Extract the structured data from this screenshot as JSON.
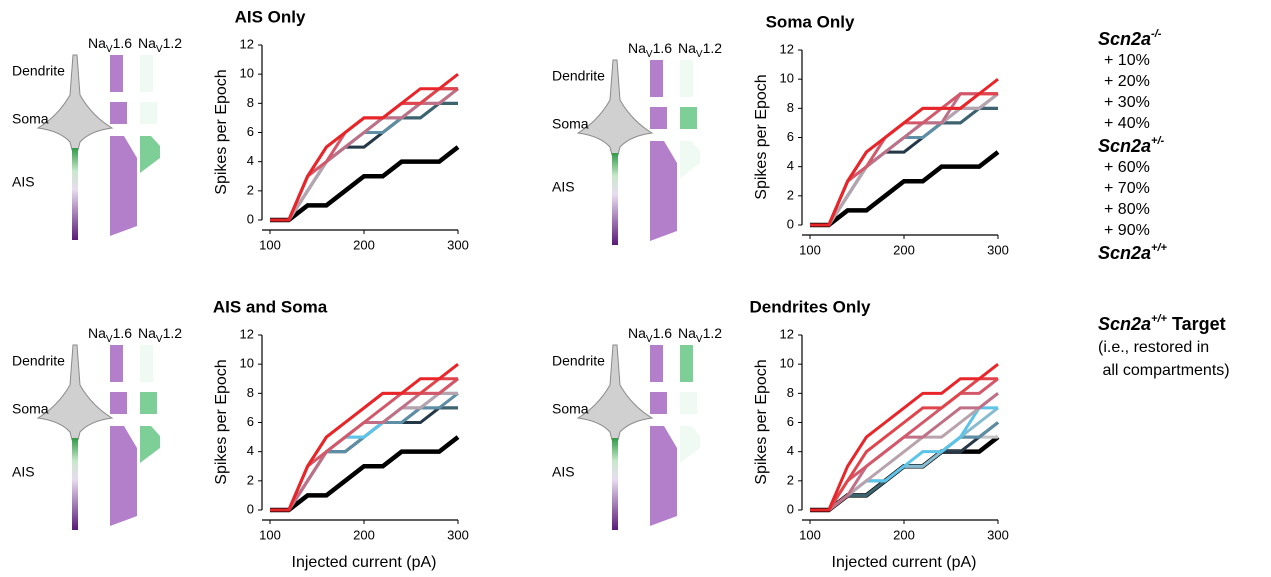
{
  "chart_data": [
    {
      "type": "line",
      "title": "AIS Only",
      "ylabel": "Spikes per Epoch",
      "x": [
        100,
        120,
        140,
        160,
        180,
        200,
        220,
        240,
        260,
        280,
        300
      ],
      "xlim": [
        100,
        300
      ],
      "xticks": [
        100,
        200,
        300
      ],
      "ylim": [
        0,
        12
      ],
      "yticks": [
        0,
        2,
        4,
        6,
        8,
        10,
        12
      ],
      "compartments": [
        {
          "label": "Dendrite",
          "muted": true
        },
        {
          "label": "Soma",
          "muted": true
        },
        {
          "label": "AIS",
          "muted": false
        }
      ],
      "channels": [
        {
          "name": "Na",
          "sub": "V",
          "num": "1.6",
          "color": "#a050b8"
        },
        {
          "name": "Na",
          "sub": "V",
          "num": "1.2",
          "color": "#3fae5f"
        }
      ],
      "nav12": [
        false,
        false,
        true
      ],
      "series": [
        {
          "values": [
            0,
            0,
            3,
            5,
            6,
            7,
            7,
            8,
            9,
            9,
            10
          ]
        },
        {
          "values": [
            0,
            0,
            3,
            5,
            6,
            7,
            7,
            8,
            8,
            9,
            9
          ]
        },
        {
          "values": [
            0,
            0,
            3,
            4,
            6,
            7,
            7,
            8,
            8,
            9,
            9
          ]
        },
        {
          "values": [
            0,
            0,
            3,
            4,
            5,
            6,
            7,
            7,
            8,
            8,
            9
          ]
        },
        {
          "values": [
            0,
            0,
            2,
            4,
            5,
            6,
            7,
            7,
            8,
            8,
            9
          ]
        },
        {
          "values": [
            0,
            0,
            2,
            4,
            5,
            6,
            7,
            7,
            8,
            9,
            9
          ]
        },
        {
          "values": [
            0,
            0,
            2,
            4,
            5,
            6,
            7,
            7,
            8,
            8,
            9
          ]
        },
        {
          "values": [
            0,
            0,
            2,
            4,
            5,
            6,
            6,
            7,
            8,
            8,
            9
          ]
        },
        {
          "values": [
            0,
            0,
            2,
            4,
            5,
            6,
            6,
            7,
            7,
            8,
            8
          ]
        },
        {
          "values": [
            0,
            0,
            2,
            4,
            5,
            5,
            6,
            7,
            7,
            8,
            8
          ]
        },
        {
          "values": [
            0,
            0,
            2,
            4,
            5,
            5,
            6,
            7,
            7,
            8,
            8
          ]
        },
        {
          "values": [
            0,
            0,
            1,
            1,
            2,
            3,
            3,
            4,
            4,
            4,
            5
          ]
        }
      ]
    },
    {
      "type": "line",
      "title": "Soma Only",
      "ylabel": "Spikes per Epoch",
      "x": [
        100,
        120,
        140,
        160,
        180,
        200,
        220,
        240,
        260,
        280,
        300
      ],
      "xlim": [
        100,
        300
      ],
      "xticks": [
        100,
        200,
        300
      ],
      "ylim": [
        0,
        12
      ],
      "yticks": [
        0,
        2,
        4,
        6,
        8,
        10,
        12
      ],
      "compartments": [
        {
          "label": "Dendrite",
          "muted": false
        },
        {
          "label": "Soma",
          "muted": false
        },
        {
          "label": "AIS",
          "muted": false
        }
      ],
      "channels": [
        {
          "name": "Na",
          "sub": "V",
          "num": "1.6",
          "color": "#a050b8"
        },
        {
          "name": "Na",
          "sub": "V",
          "num": "1.2",
          "color": "#3fae5f"
        }
      ],
      "nav12": [
        false,
        true,
        false
      ],
      "series": [
        {
          "values": [
            0,
            0,
            3,
            5,
            6,
            7,
            8,
            8,
            8,
            9,
            10
          ]
        },
        {
          "values": [
            0,
            0,
            3,
            5,
            6,
            7,
            8,
            8,
            8,
            9,
            9
          ]
        },
        {
          "values": [
            0,
            0,
            3,
            4,
            6,
            7,
            7,
            8,
            9,
            9,
            9
          ]
        },
        {
          "values": [
            0,
            0,
            3,
            4,
            5,
            6,
            7,
            7,
            9,
            9,
            9
          ]
        },
        {
          "values": [
            0,
            0,
            2,
            4,
            5,
            6,
            7,
            7,
            8,
            8,
            9
          ]
        },
        {
          "values": [
            0,
            0,
            2,
            4,
            5,
            6,
            7,
            7,
            8,
            8,
            9
          ]
        },
        {
          "values": [
            0,
            0,
            2,
            4,
            5,
            6,
            7,
            7,
            8,
            8,
            9
          ]
        },
        {
          "values": [
            0,
            0,
            2,
            4,
            5,
            6,
            6,
            7,
            8,
            8,
            9
          ]
        },
        {
          "values": [
            0,
            0,
            2,
            4,
            5,
            6,
            6,
            7,
            7,
            8,
            8
          ]
        },
        {
          "values": [
            0,
            0,
            2,
            4,
            5,
            5,
            6,
            7,
            7,
            8,
            8
          ]
        },
        {
          "values": [
            0,
            0,
            2,
            4,
            5,
            5,
            6,
            7,
            7,
            8,
            8
          ]
        },
        {
          "values": [
            0,
            0,
            1,
            1,
            2,
            3,
            3,
            4,
            4,
            4,
            5
          ]
        }
      ]
    },
    {
      "type": "line",
      "title": "AIS and Soma",
      "ylabel": "Spikes per Epoch",
      "x": [
        100,
        120,
        140,
        160,
        180,
        200,
        220,
        240,
        260,
        280,
        300
      ],
      "xlim": [
        100,
        300
      ],
      "xticks": [
        100,
        200,
        300
      ],
      "ylim": [
        0,
        12
      ],
      "yticks": [
        0,
        2,
        4,
        6,
        8,
        10,
        12
      ],
      "compartments": [
        {
          "label": "Dendrite",
          "muted": true
        },
        {
          "label": "Soma",
          "muted": false
        },
        {
          "label": "AIS",
          "muted": false
        }
      ],
      "channels": [
        {
          "name": "Na",
          "sub": "V",
          "num": "1.6",
          "color": "#a050b8"
        },
        {
          "name": "Na",
          "sub": "V",
          "num": "1.2",
          "color": "#3fae5f"
        }
      ],
      "nav12": [
        false,
        true,
        true
      ],
      "series": [
        {
          "values": [
            0,
            0,
            3,
            5,
            6,
            7,
            8,
            8,
            9,
            9,
            10
          ]
        },
        {
          "values": [
            0,
            0,
            3,
            5,
            6,
            7,
            8,
            8,
            8,
            9,
            9
          ]
        },
        {
          "values": [
            0,
            0,
            3,
            4,
            5,
            6,
            7,
            8,
            8,
            8,
            9
          ]
        },
        {
          "values": [
            0,
            0,
            2,
            4,
            5,
            6,
            6,
            7,
            8,
            8,
            9
          ]
        },
        {
          "values": [
            0,
            0,
            2,
            4,
            5,
            6,
            6,
            7,
            7,
            8,
            8
          ]
        },
        {
          "values": [
            0,
            0,
            2,
            4,
            5,
            5,
            6,
            7,
            7,
            8,
            8
          ]
        },
        {
          "values": [
            0,
            0,
            2,
            4,
            5,
            5,
            6,
            7,
            7,
            8,
            8
          ]
        },
        {
          "values": [
            0,
            0,
            2,
            4,
            4,
            5,
            6,
            6,
            7,
            7,
            8
          ]
        },
        {
          "values": [
            0,
            0,
            2,
            4,
            4,
            5,
            6,
            6,
            7,
            7,
            7
          ]
        },
        {
          "values": [
            0,
            0,
            2,
            4,
            4,
            5,
            6,
            6,
            6,
            7,
            7
          ]
        },
        {
          "values": [
            0,
            0,
            2,
            4,
            4,
            5,
            6,
            6,
            6,
            7,
            7
          ]
        },
        {
          "values": [
            0,
            0,
            1,
            1,
            2,
            3,
            3,
            4,
            4,
            4,
            5
          ]
        }
      ]
    },
    {
      "type": "line",
      "title": "Dendrites Only",
      "ylabel": "Spikes per Epoch",
      "xlabel": "Injected current (pA)",
      "x": [
        100,
        120,
        140,
        160,
        180,
        200,
        220,
        240,
        260,
        280,
        300
      ],
      "xlim": [
        100,
        300
      ],
      "xticks": [
        100,
        200,
        300
      ],
      "ylim": [
        0,
        12
      ],
      "yticks": [
        0,
        2,
        4,
        6,
        8,
        10,
        12
      ],
      "compartments": [
        {
          "label": "Dendrite",
          "muted": false
        },
        {
          "label": "Soma",
          "muted": false
        },
        {
          "label": "AIS",
          "muted": false
        }
      ],
      "channels": [
        {
          "name": "Na",
          "sub": "V",
          "num": "1.6",
          "color": "#a050b8"
        },
        {
          "name": "Na",
          "sub": "V",
          "num": "1.2",
          "color": "#3fae5f"
        }
      ],
      "nav12": [
        true,
        false,
        false
      ],
      "series": [
        {
          "values": [
            0,
            0,
            3,
            5,
            6,
            7,
            8,
            8,
            9,
            9,
            10
          ]
        },
        {
          "values": [
            0,
            0,
            2,
            4,
            5,
            6,
            7,
            7,
            8,
            9,
            9
          ]
        },
        {
          "values": [
            0,
            0,
            2,
            3,
            4,
            5,
            6,
            7,
            8,
            8,
            9
          ]
        },
        {
          "values": [
            0,
            0,
            1,
            3,
            4,
            5,
            5,
            6,
            7,
            7,
            8
          ]
        },
        {
          "values": [
            0,
            0,
            1,
            2,
            3,
            4,
            5,
            5,
            6,
            7,
            8
          ]
        },
        {
          "values": [
            0,
            0,
            1,
            2,
            2,
            3,
            4,
            4,
            5,
            7,
            7
          ]
        },
        {
          "values": [
            0,
            0,
            1,
            2,
            2,
            3,
            3,
            4,
            5,
            6,
            7
          ]
        },
        {
          "values": [
            0,
            0,
            1,
            2,
            2,
            3,
            3,
            4,
            5,
            5,
            6
          ]
        },
        {
          "values": [
            0,
            0,
            1,
            1,
            2,
            3,
            3,
            4,
            5,
            5,
            6
          ]
        },
        {
          "values": [
            0,
            0,
            1,
            1,
            2,
            3,
            3,
            4,
            4,
            5,
            6
          ]
        },
        {
          "values": [
            0,
            0,
            1,
            1,
            2,
            3,
            3,
            4,
            4,
            5,
            5
          ]
        },
        {
          "values": [
            0,
            0,
            1,
            1,
            2,
            3,
            3,
            4,
            4,
            4,
            5
          ]
        }
      ]
    }
  ],
  "xlabel_bottom_left": "Injected current (pA)",
  "legend": {
    "items": [
      {
        "name": "Scn2a",
        "sup": "-/-",
        "color": "#e8262a",
        "bold": true
      },
      {
        "name": "+ 10%",
        "color": "#e0454c"
      },
      {
        "name": "+ 20%",
        "color": "#d2586a"
      },
      {
        "name": "+ 30%",
        "color": "#c07086"
      },
      {
        "name": "+ 40%",
        "color": "#b8a3ad"
      },
      {
        "name": "Scn2a",
        "sup": "+/-",
        "color": "#5bc4e8",
        "bold": true
      },
      {
        "name": "+ 60%",
        "color": "#87bcd0"
      },
      {
        "name": "+ 70%",
        "color": "#5e8ea5"
      },
      {
        "name": "+ 80%",
        "color": "#3c6470"
      },
      {
        "name": "+ 90%",
        "color": "#243848"
      },
      {
        "name": "Scn2a",
        "sup": "+/+",
        "color": "#c4c4c4",
        "bold": true
      }
    ],
    "target": {
      "name": "Scn2a",
      "sup": "+/+",
      "suffix": " Target",
      "color": "#000000",
      "notes": [
        "(i.e., restored in",
        " all compartments)"
      ]
    }
  }
}
